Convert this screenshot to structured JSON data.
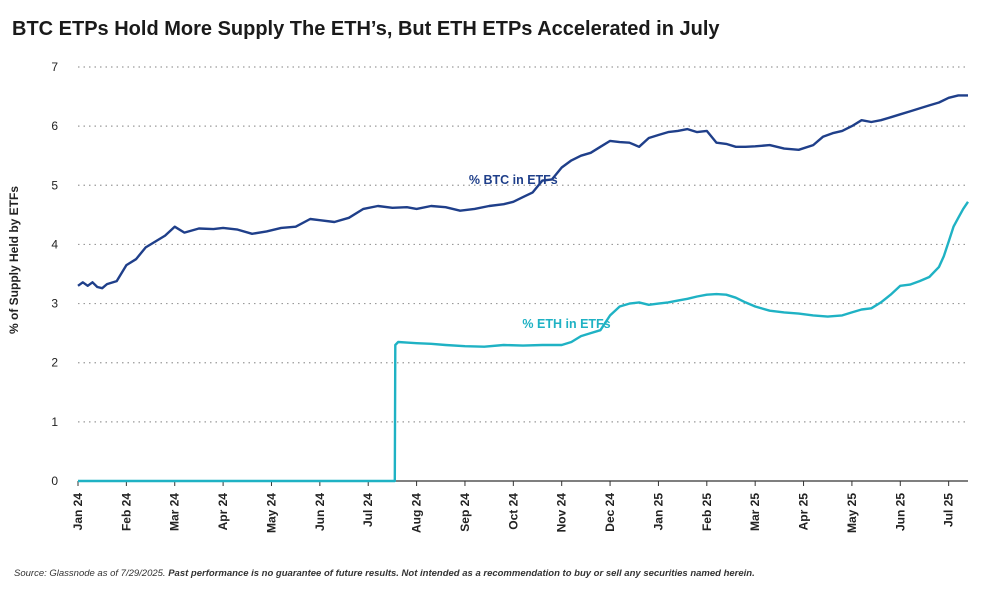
{
  "chart_data": {
    "type": "line",
    "title": "BTC ETPs Hold More Supply The ETH’s, But ETH ETPs Accelerated in July",
    "ylabel": "% of Supply Held by ETFs",
    "xlabel": "",
    "ylim": [
      0,
      7
    ],
    "yticks": [
      0,
      1,
      2,
      3,
      4,
      5,
      6,
      7
    ],
    "grid": true,
    "x_tick_labels": [
      "Jan 24",
      "Feb 24",
      "Mar 24",
      "Apr 24",
      "May 24",
      "Jun 24",
      "Jul 24",
      "Aug 24",
      "Sep 24",
      "Oct 24",
      "Nov 24",
      "Dec 24",
      "Jan 25",
      "Feb 25",
      "Mar 25",
      "Apr 25",
      "May 25",
      "Jun 25",
      "Jul 25"
    ],
    "x_unit": "months since Jan 2024",
    "series": [
      {
        "name": "% BTC in ETFs",
        "color": "#1f3f8a",
        "x": [
          0,
          0.1,
          0.2,
          0.3,
          0.4,
          0.5,
          0.6,
          0.8,
          1.0,
          1.2,
          1.4,
          1.6,
          1.8,
          2.0,
          2.2,
          2.5,
          2.8,
          3.0,
          3.3,
          3.6,
          3.9,
          4.2,
          4.5,
          4.8,
          5.0,
          5.3,
          5.6,
          5.9,
          6.2,
          6.5,
          6.8,
          7.0,
          7.3,
          7.6,
          7.9,
          8.2,
          8.5,
          8.8,
          9.0,
          9.2,
          9.4,
          9.6,
          9.8,
          10.0,
          10.2,
          10.4,
          10.6,
          10.8,
          11.0,
          11.2,
          11.4,
          11.6,
          11.8,
          12.0,
          12.2,
          12.4,
          12.6,
          12.8,
          13.0,
          13.2,
          13.4,
          13.6,
          13.8,
          14.0,
          14.3,
          14.6,
          14.9,
          15.2,
          15.4,
          15.6,
          15.8,
          16.0,
          16.2,
          16.4,
          16.6,
          16.8,
          17.0,
          17.2,
          17.4,
          17.6,
          17.8,
          18.0,
          18.2,
          18.4
        ],
        "y": [
          3.3,
          3.36,
          3.3,
          3.36,
          3.28,
          3.26,
          3.33,
          3.38,
          3.65,
          3.75,
          3.95,
          4.05,
          4.15,
          4.3,
          4.2,
          4.27,
          4.26,
          4.28,
          4.25,
          4.18,
          4.22,
          4.28,
          4.3,
          4.43,
          4.41,
          4.38,
          4.45,
          4.6,
          4.65,
          4.62,
          4.63,
          4.6,
          4.65,
          4.63,
          4.57,
          4.6,
          4.65,
          4.68,
          4.72,
          4.8,
          4.88,
          5.08,
          5.1,
          5.3,
          5.42,
          5.5,
          5.55,
          5.65,
          5.75,
          5.73,
          5.72,
          5.65,
          5.8,
          5.85,
          5.9,
          5.92,
          5.95,
          5.9,
          5.92,
          5.72,
          5.7,
          5.65,
          5.65,
          5.66,
          5.68,
          5.62,
          5.6,
          5.68,
          5.82,
          5.88,
          5.92,
          6.0,
          6.1,
          6.07,
          6.1,
          6.15,
          6.2,
          6.25,
          6.3,
          6.35,
          6.4,
          6.48,
          6.52,
          6.52
        ]
      },
      {
        "name": "% ETH in ETFs",
        "color": "#1fb2c4",
        "x": [
          0,
          1,
          2,
          3,
          4,
          5,
          6,
          6.55,
          6.56,
          6.62,
          6.8,
          7.0,
          7.3,
          7.6,
          8.0,
          8.4,
          8.8,
          9.2,
          9.6,
          10.0,
          10.2,
          10.4,
          10.6,
          10.8,
          11.0,
          11.2,
          11.4,
          11.6,
          11.8,
          12.0,
          12.2,
          12.4,
          12.6,
          12.8,
          13.0,
          13.2,
          13.4,
          13.6,
          13.8,
          14.0,
          14.3,
          14.6,
          14.9,
          15.2,
          15.5,
          15.8,
          16.0,
          16.2,
          16.4,
          16.6,
          16.8,
          17.0,
          17.2,
          17.4,
          17.6,
          17.8,
          17.9,
          18.0,
          18.1,
          18.2,
          18.3,
          18.4
        ],
        "y": [
          0,
          0,
          0,
          0,
          0,
          0,
          0,
          0,
          2.3,
          2.35,
          2.34,
          2.33,
          2.32,
          2.3,
          2.28,
          2.27,
          2.3,
          2.29,
          2.3,
          2.3,
          2.35,
          2.45,
          2.5,
          2.55,
          2.8,
          2.95,
          3.0,
          3.02,
          2.98,
          3.0,
          3.02,
          3.05,
          3.08,
          3.12,
          3.15,
          3.16,
          3.15,
          3.1,
          3.02,
          2.95,
          2.88,
          2.85,
          2.83,
          2.8,
          2.78,
          2.8,
          2.85,
          2.9,
          2.92,
          3.02,
          3.15,
          3.3,
          3.32,
          3.38,
          3.45,
          3.62,
          3.8,
          4.05,
          4.3,
          4.45,
          4.6,
          4.72
        ]
      }
    ],
    "annotations": [
      {
        "text": "% BTC in ETFs",
        "series": "% BTC in ETFs"
      },
      {
        "text": "% ETH in ETFs",
        "series": "% ETH in ETFs"
      }
    ]
  },
  "footer": {
    "source": "Source: Glassnode as of 7/29/2025. ",
    "disclaimer": "Past performance is no guarantee of future results. Not intended as a recommendation to buy or sell any securities named herein."
  }
}
